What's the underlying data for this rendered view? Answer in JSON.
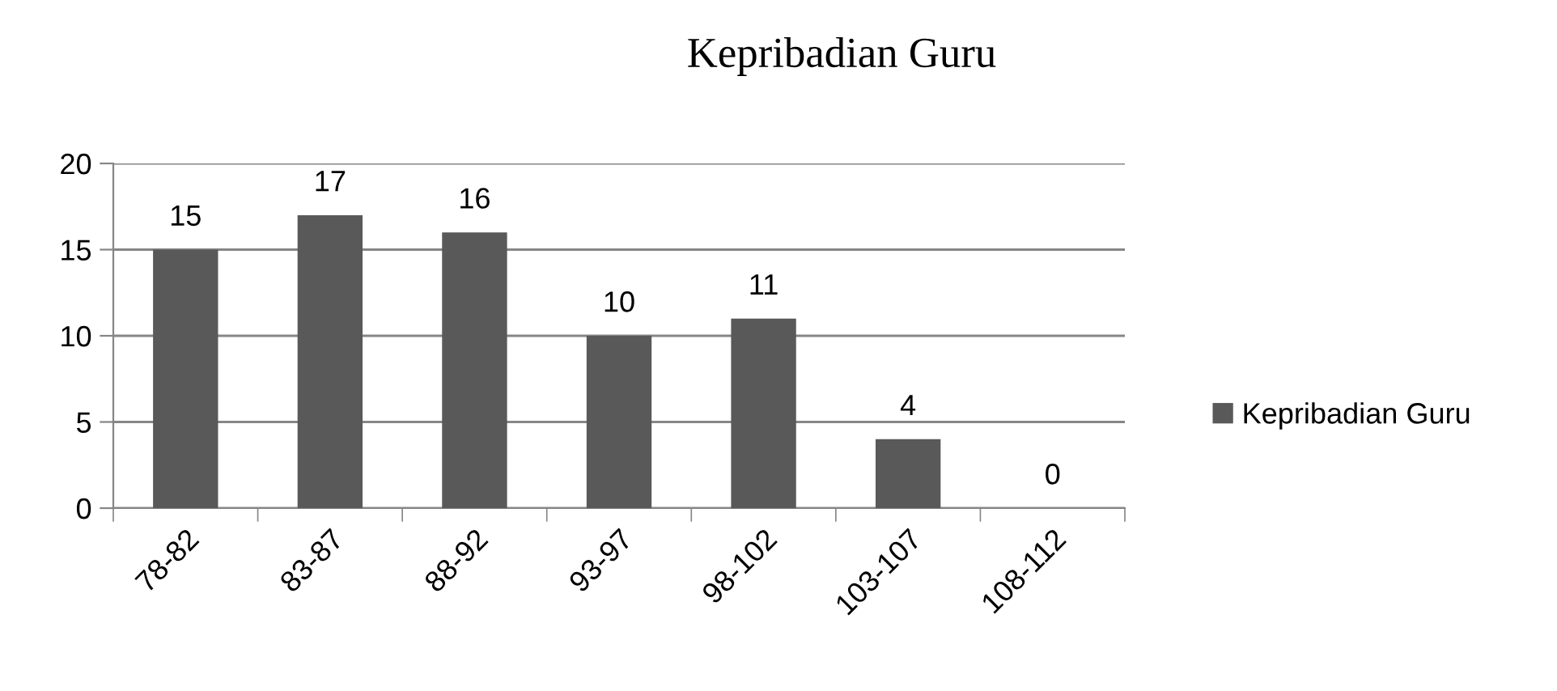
{
  "chart_data": {
    "type": "bar",
    "title": "Kepribadian Guru",
    "categories": [
      "78-82",
      "83-87",
      "88-92",
      "93-97",
      "98-102",
      "103-107",
      "108-112"
    ],
    "series": [
      {
        "name": "Kepribadian Guru",
        "color": "#595959",
        "values": [
          15,
          17,
          16,
          10,
          11,
          4,
          0
        ]
      }
    ],
    "ylim": [
      0,
      20
    ],
    "yticks": [
      0,
      5,
      10,
      15,
      20
    ],
    "grid": "y",
    "legend": "right",
    "data_labels": true
  }
}
